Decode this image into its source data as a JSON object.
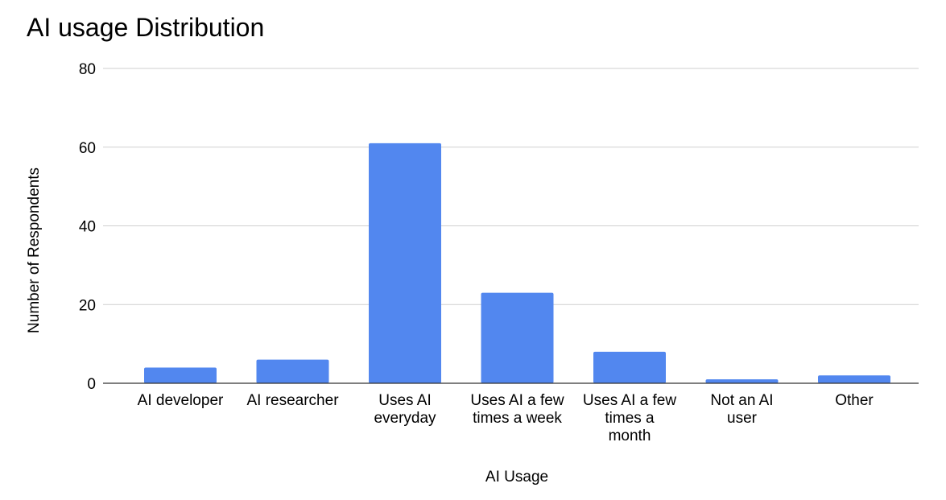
{
  "chart_data": {
    "type": "bar",
    "title": "AI usage Distribution",
    "xlabel": "AI Usage",
    "ylabel": "Number of Respondents",
    "categories": [
      [
        "AI developer"
      ],
      [
        "AI researcher"
      ],
      [
        "Uses AI",
        "everyday"
      ],
      [
        "Uses AI a few",
        "times a week"
      ],
      [
        "Uses AI a few",
        "times a",
        "month"
      ],
      [
        "Not an AI",
        "user"
      ],
      [
        "Other"
      ]
    ],
    "values": [
      4,
      6,
      61,
      23,
      8,
      1,
      2
    ],
    "ylim": [
      0,
      80
    ],
    "yticks": [
      "0",
      "20",
      "40",
      "60",
      "80"
    ],
    "grid": true,
    "bar_color": "#5287ef"
  }
}
